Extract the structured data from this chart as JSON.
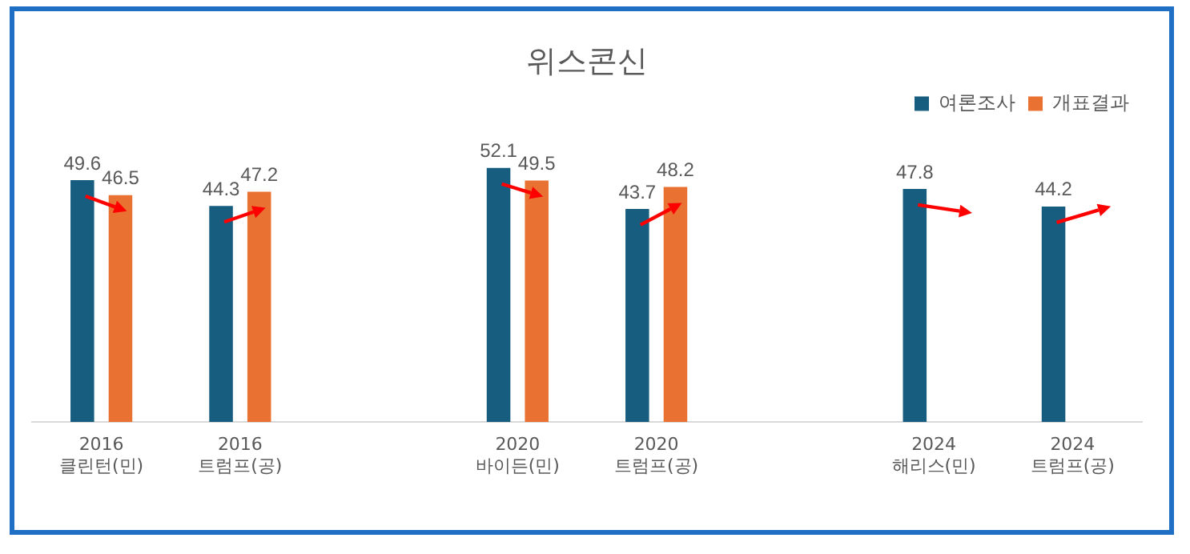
{
  "chart_data": {
    "type": "bar",
    "title": "위스콘신",
    "categories": [
      "2016\n클린턴(민)",
      "2016\n트럼프(공)",
      null,
      "2020\n바이든(민)",
      "2020\n트럼프(공)",
      null,
      "2024\n해리스(민)",
      "2024\n트럼프(공)"
    ],
    "series": [
      {
        "name": "여론조사",
        "color": "#175d80",
        "values": [
          49.6,
          44.3,
          null,
          52.1,
          43.7,
          null,
          47.8,
          44.2
        ]
      },
      {
        "name": "개표결과",
        "color": "#e97132",
        "values": [
          46.5,
          47.2,
          null,
          49.5,
          48.2,
          null,
          null,
          null
        ]
      }
    ],
    "data_labels": true,
    "legend": "top right",
    "grid": false,
    "tick_labels": "x"
  }
}
